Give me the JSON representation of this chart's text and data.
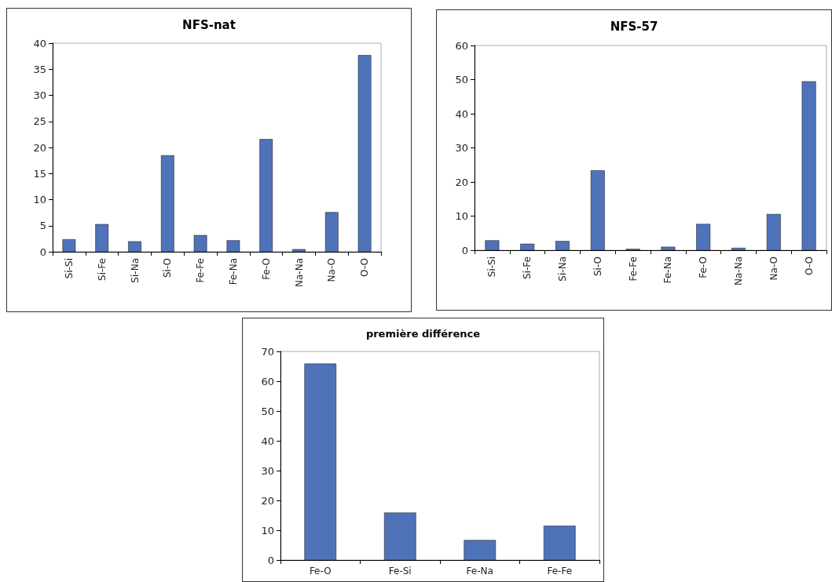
{
  "chart_data": [
    {
      "type": "bar",
      "title": "NFS-nat",
      "categories": [
        "Si-Si",
        "Si-Fe",
        "Si-Na",
        "Si-O",
        "Fe-Fe",
        "Fe-Na",
        "Fe-O",
        "Na-Na",
        "Na-O",
        "O-O"
      ],
      "values": [
        2.4,
        5.3,
        2.0,
        18.5,
        3.2,
        2.2,
        21.6,
        0.5,
        7.6,
        37.7
      ],
      "color": "#4f73b9",
      "ylim": [
        0,
        40
      ],
      "yticks": [
        0,
        5,
        10,
        15,
        20,
        25,
        30,
        35,
        40
      ],
      "grid": false
    },
    {
      "type": "bar",
      "title": "NFS-57",
      "categories": [
        "Si-Si",
        "Si-Fe",
        "Si-Na",
        "Si-O",
        "Fe-Fe",
        "Fe-Na",
        "Fe-O",
        "Na-Na",
        "Na-O",
        "O-O"
      ],
      "values": [
        2.9,
        1.9,
        2.7,
        23.4,
        0.4,
        1.0,
        7.7,
        0.7,
        10.6,
        49.5
      ],
      "color": "#4f73b9",
      "ylim": [
        0,
        60
      ],
      "yticks": [
        0,
        10,
        20,
        30,
        40,
        50,
        60
      ],
      "grid": false
    },
    {
      "type": "bar",
      "title": "première différence",
      "categories": [
        "Fe-O",
        "Fe-Si",
        "Fe-Na",
        "Fe-Fe"
      ],
      "values": [
        65.9,
        15.9,
        6.7,
        11.5
      ],
      "color": "#4f73b9",
      "ylim": [
        0,
        70
      ],
      "yticks": [
        0,
        10,
        20,
        30,
        40,
        50,
        60,
        70
      ],
      "grid": false
    }
  ]
}
